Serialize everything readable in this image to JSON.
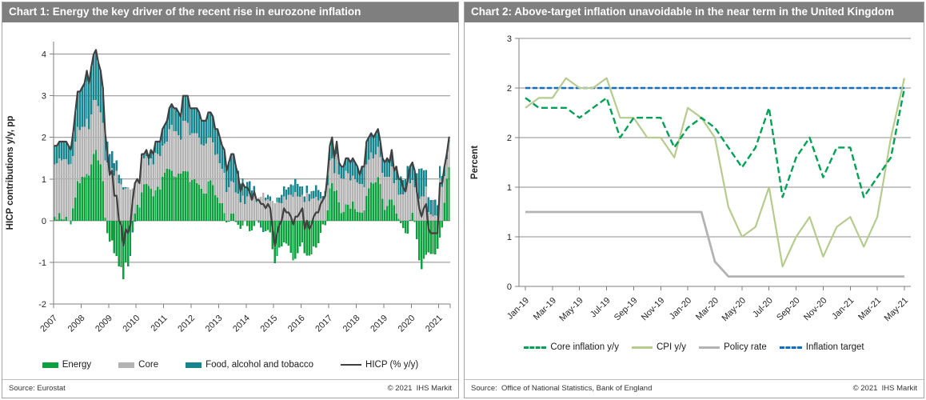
{
  "panel1": {
    "title": "Chart 1: Energy the key driver of the recent rise in eurozone inflation",
    "source": "Source: Eurostat",
    "copyright": "© 2021  IHS Markit",
    "chart_data": {
      "type": "bar",
      "subtype": "stacked-bar-with-line",
      "title": "Chart 1: Energy the key driver of the recent rise in eurozone inflation",
      "ylabel": "HICP contributions y/y, pp",
      "ylim": [
        -2,
        4.3
      ],
      "yticks": [
        -2,
        -1,
        0,
        1,
        2,
        3,
        4
      ],
      "grid": true,
      "x_start": "2007-01",
      "x_end": "2021-05",
      "x_tick_labels": [
        "2007",
        "2008",
        "2009",
        "2010",
        "2011",
        "2012",
        "2013",
        "2014",
        "2015",
        "2016",
        "2017",
        "2018",
        "2019",
        "2020",
        "2021"
      ],
      "series": [
        {
          "name": "Energy",
          "type": "bar",
          "swatch": "bar",
          "color": "#0ca13e",
          "values": [
            0.09,
            0.03,
            0.18,
            0.04,
            0.03,
            0.09,
            0.0,
            -0.09,
            0.3,
            0.55,
            0.95,
            0.9,
            1.05,
            1.04,
            1.12,
            1.08,
            1.35,
            1.6,
            1.7,
            1.45,
            1.35,
            0.95,
            0.07,
            -0.3,
            -0.5,
            -0.47,
            -0.78,
            -0.85,
            -1.1,
            -1.12,
            -1.4,
            -1.0,
            -1.05,
            -0.8,
            -0.23,
            0.17,
            0.38,
            0.31,
            0.68,
            0.87,
            0.88,
            0.83,
            0.77,
            0.58,
            0.73,
            0.81,
            0.75,
            1.05,
            1.15,
            1.25,
            1.24,
            1.2,
            1.06,
            1.04,
            1.13,
            1.13,
            1.19,
            1.19,
            1.18,
            0.93,
            0.98,
            1.0,
            0.9,
            0.86,
            0.77,
            0.65,
            0.65,
            0.94,
            0.97,
            0.85,
            0.61,
            0.55,
            0.42,
            0.42,
            0.18,
            -0.04,
            -0.02,
            0.17,
            0.17,
            -0.03,
            -0.1,
            -0.19,
            -0.12,
            0.0,
            -0.13,
            -0.25,
            -0.23,
            -0.13,
            0.0,
            0.01,
            -0.11,
            -0.22,
            -0.25,
            -0.22,
            -0.28,
            -0.68,
            -1.0,
            -0.85,
            -0.65,
            -0.62,
            -0.52,
            -0.55,
            -0.6,
            -0.77,
            -0.95,
            -0.91,
            -0.78,
            -0.62,
            -0.52,
            -0.78,
            -0.84,
            -0.84,
            -0.81,
            -0.62,
            -0.65,
            -0.54,
            -0.29,
            -0.09,
            -0.11,
            0.25,
            0.78,
            0.9,
            0.71,
            0.73,
            0.44,
            0.18,
            0.21,
            0.39,
            0.38,
            0.29,
            0.46,
            0.28,
            0.21,
            0.2,
            0.19,
            0.25,
            0.59,
            0.78,
            0.92,
            0.89,
            0.92,
            1.04,
            0.88,
            0.53,
            0.26,
            0.35,
            0.51,
            0.51,
            0.37,
            0.17,
            0.05,
            -0.06,
            -0.18,
            -0.3,
            -0.31,
            0.02,
            0.19,
            -0.03,
            -0.44,
            -0.95,
            -1.16,
            -0.91,
            -0.82,
            -0.76,
            -0.8,
            -0.8,
            -0.81,
            -0.67,
            -0.41,
            -0.17,
            0.43,
            1.01,
            1.28
          ]
        },
        {
          "name": "Core",
          "type": "bar",
          "swatch": "bar",
          "color": "#b3b3b3",
          "values": [
            1.26,
            1.35,
            1.32,
            1.41,
            1.45,
            1.39,
            1.35,
            1.36,
            1.25,
            1.35,
            1.3,
            1.28,
            1.2,
            1.21,
            1.33,
            1.12,
            1.2,
            1.3,
            1.2,
            1.3,
            1.25,
            1.4,
            1.38,
            1.4,
            1.15,
            1.27,
            1.08,
            1.2,
            0.9,
            0.87,
            0.75,
            0.78,
            0.8,
            0.75,
            0.78,
            0.75,
            0.62,
            0.57,
            0.87,
            0.63,
            0.67,
            0.5,
            0.73,
            0.77,
            0.9,
            0.79,
            0.8,
            0.75,
            0.7,
            0.65,
            0.96,
            1.1,
            1.09,
            1.11,
            0.92,
            0.82,
            1.21,
            1.21,
            1.17,
            1.12,
            1.12,
            1.1,
            1.2,
            1.14,
            1.06,
            1.15,
            1.2,
            1.06,
            1.03,
            1.03,
            0.97,
            1.05,
            0.96,
            0.83,
            0.97,
            0.69,
            0.8,
            0.78,
            0.75,
            0.68,
            0.65,
            0.44,
            0.6,
            0.4,
            0.58,
            0.65,
            0.53,
            0.68,
            0.45,
            0.54,
            0.57,
            0.67,
            0.49,
            0.52,
            0.48,
            0.48,
            0.42,
            0.45,
            0.43,
            0.42,
            0.58,
            0.51,
            0.62,
            0.62,
            0.57,
            0.69,
            0.58,
            0.57,
            0.62,
            0.45,
            0.67,
            0.47,
            0.53,
            0.54,
            0.57,
            0.49,
            0.54,
            0.49,
            0.59,
            0.6,
            0.67,
            0.6,
            0.43,
            0.87,
            0.67,
            0.84,
            0.8,
            0.81,
            0.76,
            0.68,
            0.62,
            0.72,
            0.71,
            0.68,
            0.69,
            0.55,
            0.76,
            0.69,
            0.72,
            0.61,
            0.67,
            0.73,
            0.64,
            0.62,
            0.79,
            0.7,
            0.54,
            0.79,
            0.53,
            0.81,
            0.57,
            0.63,
            0.63,
            0.7,
            0.94,
            0.88,
            0.79,
            0.8,
            0.68,
            0.53,
            0.58,
            0.58,
            0.82,
            0.21,
            0.15,
            0.1,
            0.13,
            0.11,
            1.03,
            0.81,
            0.64,
            0.47,
            0.61
          ]
        },
        {
          "name": "Food, alcohol and tobacco",
          "type": "bar",
          "swatch": "bar",
          "color": "#17858d",
          "values": [
            0.45,
            0.42,
            0.4,
            0.45,
            0.42,
            0.42,
            0.45,
            0.43,
            0.55,
            0.7,
            0.85,
            0.92,
            0.95,
            1.05,
            1.15,
            1.1,
            1.15,
            1.1,
            1.2,
            1.05,
            1.0,
            0.85,
            0.65,
            0.5,
            0.45,
            0.4,
            0.3,
            0.25,
            0.2,
            0.15,
            0.05,
            0.02,
            -0.05,
            -0.05,
            -0.05,
            -0.02,
            0.0,
            0.02,
            0.05,
            0.1,
            0.15,
            0.17,
            0.2,
            0.25,
            0.27,
            0.3,
            0.35,
            0.4,
            0.45,
            0.5,
            0.5,
            0.5,
            0.55,
            0.55,
            0.55,
            0.55,
            0.6,
            0.6,
            0.65,
            0.65,
            0.6,
            0.6,
            0.6,
            0.6,
            0.57,
            0.6,
            0.55,
            0.6,
            0.6,
            0.62,
            0.62,
            0.6,
            0.62,
            0.55,
            0.55,
            0.55,
            0.62,
            0.65,
            0.68,
            0.65,
            0.55,
            0.45,
            0.42,
            0.4,
            0.35,
            0.3,
            0.2,
            0.15,
            0.05,
            -0.05,
            -0.06,
            -0.05,
            0.06,
            0.1,
            0.1,
            0.0,
            -0.02,
            0.1,
            0.12,
            0.2,
            0.24,
            0.24,
            0.18,
            0.25,
            0.28,
            0.32,
            0.3,
            0.25,
            0.2,
            0.13,
            0.17,
            0.17,
            0.18,
            0.18,
            0.28,
            0.25,
            0.15,
            0.1,
            0.12,
            0.25,
            0.35,
            0.5,
            0.36,
            0.3,
            0.29,
            0.28,
            0.29,
            0.3,
            0.36,
            0.43,
            0.42,
            0.4,
            0.38,
            0.22,
            0.42,
            0.5,
            0.55,
            0.53,
            0.46,
            0.5,
            0.51,
            0.43,
            0.38,
            0.35,
            0.35,
            0.45,
            0.35,
            0.4,
            0.3,
            0.32,
            0.38,
            0.43,
            0.35,
            0.3,
            0.37,
            0.4,
            0.42,
            0.43,
            0.46,
            0.72,
            0.68,
            0.63,
            0.4,
            0.35,
            0.35,
            0.4,
            0.38,
            0.26,
            0.28,
            0.26,
            0.23,
            0.12,
            0.11
          ]
        },
        {
          "name": "HICP (% y/y)",
          "type": "line",
          "swatch": "thinline",
          "color": "#404040",
          "values": [
            1.8,
            1.8,
            1.9,
            1.9,
            1.9,
            1.9,
            1.8,
            1.7,
            2.1,
            2.6,
            3.1,
            3.1,
            3.2,
            3.3,
            3.6,
            3.3,
            3.7,
            4.0,
            4.1,
            3.8,
            3.6,
            3.2,
            2.1,
            1.6,
            1.1,
            1.2,
            0.6,
            0.6,
            0.0,
            -0.1,
            -0.6,
            -0.2,
            -0.3,
            -0.1,
            0.5,
            0.9,
            1.0,
            0.9,
            1.6,
            1.6,
            1.7,
            1.5,
            1.7,
            1.6,
            1.9,
            1.9,
            1.9,
            2.2,
            2.3,
            2.4,
            2.7,
            2.8,
            2.7,
            2.7,
            2.6,
            2.5,
            3.0,
            3.0,
            3.0,
            2.7,
            2.7,
            2.7,
            2.7,
            2.6,
            2.4,
            2.4,
            2.4,
            2.6,
            2.6,
            2.5,
            2.2,
            2.2,
            2.0,
            1.8,
            1.7,
            1.2,
            1.4,
            1.6,
            1.6,
            1.3,
            1.1,
            0.7,
            0.9,
            0.8,
            0.8,
            0.7,
            0.5,
            0.7,
            0.5,
            0.5,
            0.4,
            0.4,
            0.3,
            0.4,
            0.3,
            -0.2,
            -0.6,
            -0.3,
            -0.1,
            0.0,
            0.3,
            0.2,
            0.2,
            0.1,
            -0.1,
            0.1,
            0.1,
            0.2,
            0.3,
            -0.2,
            0.0,
            -0.2,
            -0.1,
            0.1,
            0.2,
            0.2,
            0.4,
            0.5,
            0.6,
            1.1,
            1.8,
            2.0,
            1.5,
            1.9,
            1.4,
            1.3,
            1.3,
            1.5,
            1.5,
            1.4,
            1.5,
            1.4,
            1.3,
            1.1,
            1.3,
            1.3,
            1.9,
            2.0,
            2.1,
            2.0,
            2.1,
            2.2,
            1.9,
            1.5,
            1.4,
            1.5,
            1.4,
            1.7,
            1.2,
            1.3,
            1.0,
            1.0,
            0.8,
            0.7,
            1.0,
            1.3,
            1.4,
            1.2,
            0.7,
            0.3,
            0.1,
            0.3,
            0.4,
            -0.2,
            -0.3,
            -0.3,
            -0.3,
            -0.3,
            0.9,
            0.9,
            1.3,
            1.6,
            2.0
          ]
        }
      ]
    }
  },
  "panel2": {
    "title": "Chart 2: Above-target inflation unavoidable in the near term in the United Kingdom",
    "source": "Source:  Office of National Statistics, Bank of England",
    "copyright": "© 2021  IHS Markit",
    "chart_data": {
      "type": "line",
      "title": "Chart 2: Above-target inflation unavoidable in the near term in the United Kingdom",
      "ylabel": "Percent",
      "ylim": [
        0,
        2.5
      ],
      "ytick_values": [
        0,
        0.5,
        1,
        1.5,
        2,
        2.5
      ],
      "ytick_labels": [
        "0",
        "1",
        "1",
        "2",
        "2",
        "3"
      ],
      "grid": true,
      "x": [
        "Jan-19",
        "Feb-19",
        "Mar-19",
        "Apr-19",
        "May-19",
        "Jun-19",
        "Jul-19",
        "Aug-19",
        "Sep-19",
        "Oct-19",
        "Nov-19",
        "Dec-19",
        "Jan-20",
        "Feb-20",
        "Mar-20",
        "Apr-20",
        "May-20",
        "Jun-20",
        "Jul-20",
        "Aug-20",
        "Sep-20",
        "Oct-20",
        "Nov-20",
        "Dec-20",
        "Jan-21",
        "Feb-21",
        "Mar-21",
        "Apr-21",
        "May-21"
      ],
      "x_tick_every": 2,
      "x_tick_labels": [
        "Jan-19",
        "Mar-19",
        "May-19",
        "Jul-19",
        "Sep-19",
        "Nov-19",
        "Jan-20",
        "Mar-20",
        "May-20",
        "Jul-20",
        "Sep-20",
        "Nov-20",
        "Jan-21",
        "Mar-21",
        "May-21"
      ],
      "series": [
        {
          "name": "Core inflation y/y",
          "swatch": "dash",
          "dashed": true,
          "color": "#00a155",
          "values": [
            1.9,
            1.8,
            1.8,
            1.8,
            1.7,
            1.8,
            1.9,
            1.5,
            1.7,
            1.7,
            1.7,
            1.4,
            1.6,
            1.7,
            1.6,
            1.4,
            1.2,
            1.4,
            1.8,
            0.9,
            1.3,
            1.5,
            1.1,
            1.4,
            1.4,
            0.9,
            1.1,
            1.3,
            2.0
          ]
        },
        {
          "name": "CPI y/y",
          "swatch": "line",
          "dashed": false,
          "color": "#b6cb8e",
          "values": [
            1.8,
            1.9,
            1.9,
            2.1,
            2.0,
            2.0,
            2.1,
            1.7,
            1.7,
            1.5,
            1.5,
            1.3,
            1.8,
            1.7,
            1.5,
            0.8,
            0.5,
            0.6,
            1.0,
            0.2,
            0.5,
            0.7,
            0.3,
            0.6,
            0.7,
            0.4,
            0.7,
            1.5,
            2.1
          ]
        },
        {
          "name": "Policy rate",
          "swatch": "line",
          "dashed": false,
          "color": "#b3b3b3",
          "values": [
            0.75,
            0.75,
            0.75,
            0.75,
            0.75,
            0.75,
            0.75,
            0.75,
            0.75,
            0.75,
            0.75,
            0.75,
            0.75,
            0.75,
            0.25,
            0.1,
            0.1,
            0.1,
            0.1,
            0.1,
            0.1,
            0.1,
            0.1,
            0.1,
            0.1,
            0.1,
            0.1,
            0.1,
            0.1
          ]
        },
        {
          "name": "Inflation target",
          "swatch": "dash",
          "dashed": true,
          "color": "#0d6fc5",
          "values": [
            2,
            2,
            2,
            2,
            2,
            2,
            2,
            2,
            2,
            2,
            2,
            2,
            2,
            2,
            2,
            2,
            2,
            2,
            2,
            2,
            2,
            2,
            2,
            2,
            2,
            2,
            2,
            2,
            2
          ]
        }
      ]
    }
  }
}
